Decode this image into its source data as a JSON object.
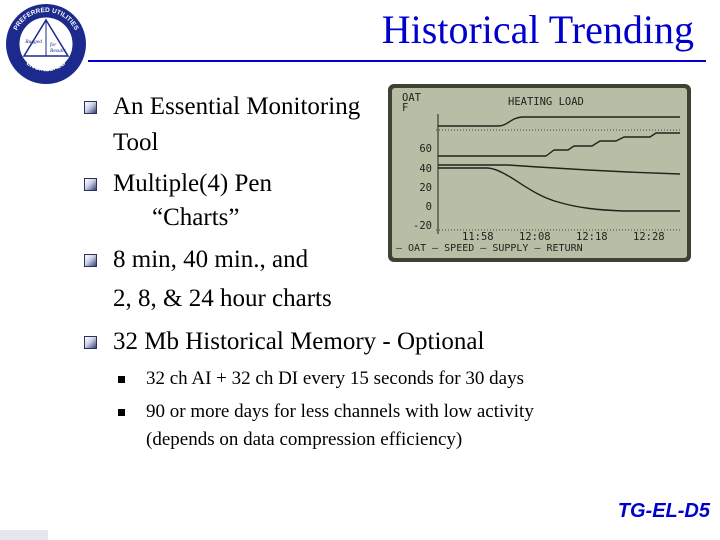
{
  "slide": {
    "title": "Historical Trending",
    "code": "TG-EL-D5"
  },
  "logo": {
    "ring_top": "PREFERRED UTILITIES",
    "ring_bottom": "ENGINEERED",
    "center_lines": [
      "Rugged",
      "for",
      "Results"
    ]
  },
  "bullets": [
    {
      "lines": [
        "An Essential Monitoring",
        "Tool"
      ]
    },
    {
      "lines": [
        "Multiple(4) Pen",
        "“Charts”"
      ]
    },
    {
      "lines": [
        "8 min, 40 min., and",
        "2, 8, & 24 hour charts"
      ]
    },
    {
      "lines": [
        "32 Mb Historical Memory - Optional"
      ]
    }
  ],
  "sub_bullets": [
    {
      "lines": [
        "32 ch AI + 32 ch DI every 15 seconds for 30 days"
      ]
    },
    {
      "lines": [
        "90 or more days for less channels with low activity",
        "(depends on data compression efficiency)"
      ]
    }
  ],
  "lcd": {
    "axis_title": [
      "OAT",
      "F"
    ],
    "title": "HEATING LOAD",
    "y_ticks": [
      "60",
      "40",
      "20",
      "0",
      "-20"
    ],
    "x_ticks": [
      "11:58",
      "12:08",
      "12:18",
      "12:28"
    ],
    "legend": "— OAT  — SPEED  — SUPPLY  — RETURN",
    "colors": {
      "bg": "#b8bea6",
      "ink": "#20231c",
      "frame": "#3d4233"
    }
  }
}
